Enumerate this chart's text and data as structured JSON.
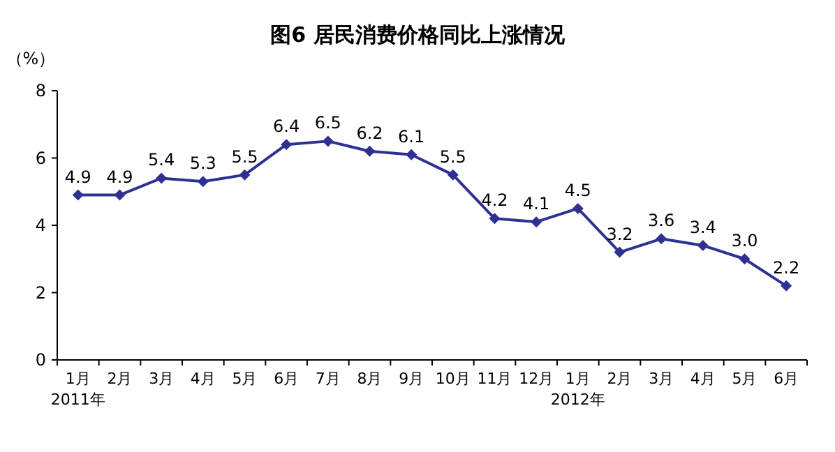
{
  "chart_data": {
    "type": "line",
    "title": "图6  居民消费价格同比上涨情况",
    "ylabel": "（%）",
    "categories": [
      "1月\n2011年",
      "2月",
      "3月",
      "4月",
      "5月",
      "6月",
      "7月",
      "8月",
      "9月",
      "10月",
      "11月",
      "12月",
      "1月\n2012年",
      "2月",
      "3月",
      "4月",
      "5月",
      "6月"
    ],
    "series": [
      {
        "color": "#2e3192",
        "values": [
          4.9,
          4.9,
          5.4,
          5.3,
          5.5,
          6.4,
          6.5,
          6.2,
          6.1,
          5.5,
          4.2,
          4.1,
          4.5,
          3.2,
          3.6,
          3.4,
          3.0,
          2.2
        ],
        "value_labels": [
          "4.9",
          "4.9",
          "5.4",
          "5.3",
          "5.5",
          "6.4",
          "6.5",
          "6.2",
          "6.1",
          "5.5",
          "4.2",
          "4.1",
          "4.5",
          "3.2",
          "3.6",
          "3.4",
          "3.0",
          "2.2"
        ]
      }
    ],
    "ylim": [
      0,
      8
    ],
    "yticks": [
      0,
      2,
      4,
      6,
      8
    ],
    "marker": "diamond",
    "line_style": "solid",
    "grid": false
  }
}
